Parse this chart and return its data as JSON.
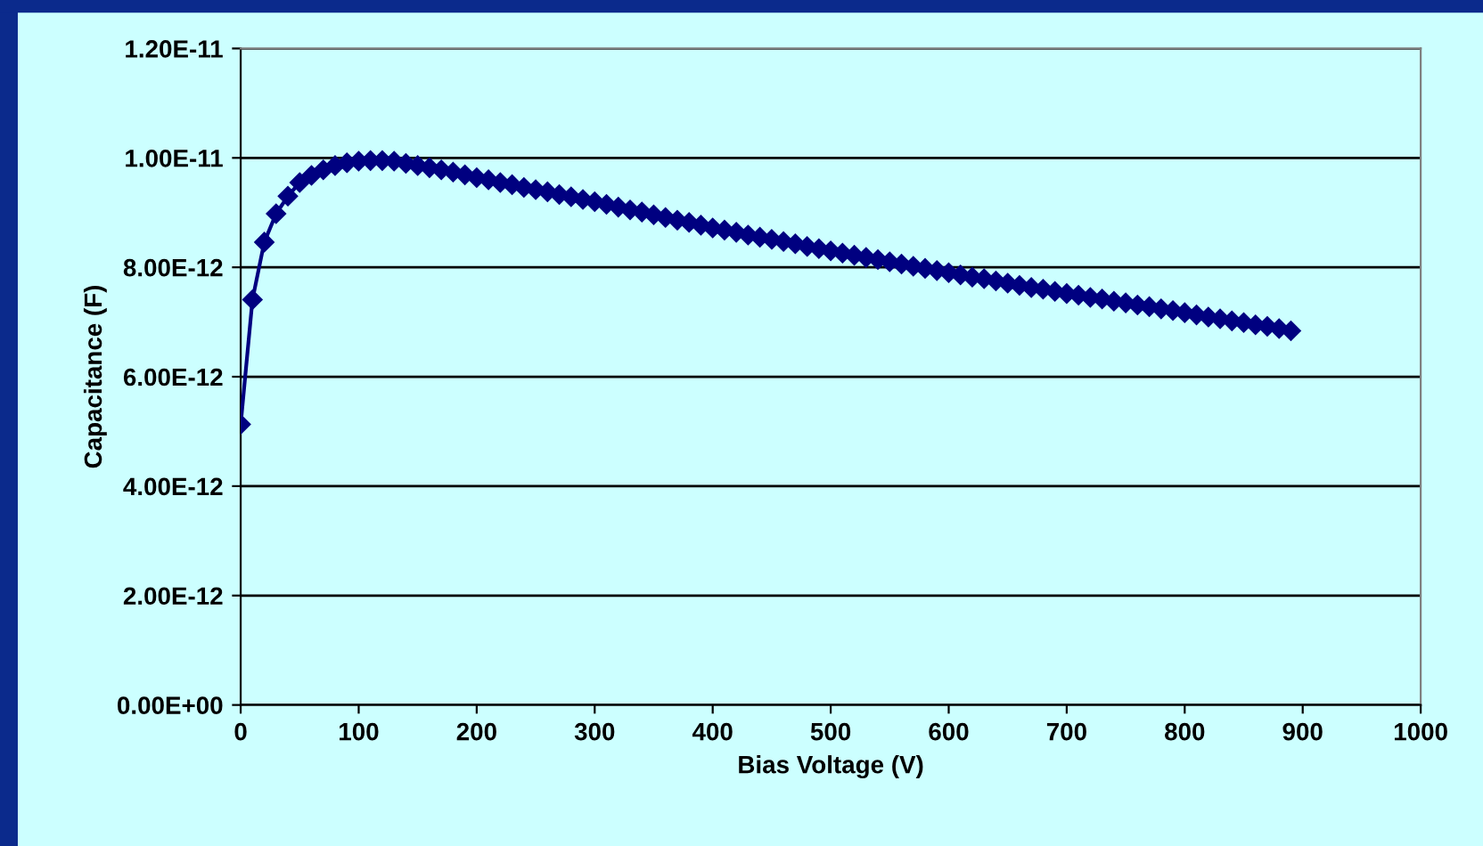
{
  "chart_data": {
    "type": "line",
    "xlabel": "Bias Voltage (V)",
    "ylabel": "Capacitance (F)",
    "x": [
      0,
      10,
      20,
      30,
      40,
      50,
      60,
      70,
      80,
      90,
      100,
      110,
      120,
      130,
      140,
      150,
      160,
      170,
      180,
      190,
      200,
      210,
      220,
      230,
      240,
      250,
      260,
      270,
      280,
      290,
      300,
      310,
      320,
      330,
      340,
      350,
      360,
      370,
      380,
      390,
      400,
      410,
      420,
      430,
      440,
      450,
      460,
      470,
      480,
      490,
      500,
      510,
      520,
      530,
      540,
      550,
      560,
      570,
      580,
      590,
      600,
      610,
      620,
      630,
      640,
      650,
      660,
      670,
      680,
      690,
      700,
      710,
      720,
      730,
      740,
      750,
      760,
      770,
      780,
      790,
      800,
      810,
      820,
      830,
      840,
      850,
      860,
      870,
      880,
      890
    ],
    "series": [
      {
        "color": "#000080",
        "values": [
          5.13e-12,
          7.41e-12,
          8.46e-12,
          8.98e-12,
          9.3e-12,
          9.55e-12,
          9.68e-12,
          9.78e-12,
          9.86e-12,
          9.91e-12,
          9.94e-12,
          9.95e-12,
          9.95e-12,
          9.94e-12,
          9.9e-12,
          9.86e-12,
          9.82e-12,
          9.78e-12,
          9.74e-12,
          9.69e-12,
          9.64e-12,
          9.6e-12,
          9.55e-12,
          9.51e-12,
          9.46e-12,
          9.42e-12,
          9.38e-12,
          9.33e-12,
          9.29e-12,
          9.24e-12,
          9.2e-12,
          9.15e-12,
          9.1e-12,
          9.05e-12,
          9.01e-12,
          8.96e-12,
          8.91e-12,
          8.86e-12,
          8.82e-12,
          8.77e-12,
          8.72e-12,
          8.68e-12,
          8.64e-12,
          8.59e-12,
          8.55e-12,
          8.51e-12,
          8.47e-12,
          8.43e-12,
          8.38e-12,
          8.34e-12,
          8.3e-12,
          8.26e-12,
          8.22e-12,
          8.18e-12,
          8.14e-12,
          8.1e-12,
          8.06e-12,
          8.02e-12,
          7.98e-12,
          7.94e-12,
          7.9e-12,
          7.86e-12,
          7.82e-12,
          7.79e-12,
          7.75e-12,
          7.71e-12,
          7.67e-12,
          7.63e-12,
          7.6e-12,
          7.56e-12,
          7.52e-12,
          7.49e-12,
          7.45e-12,
          7.42e-12,
          7.38e-12,
          7.35e-12,
          7.31e-12,
          7.28e-12,
          7.24e-12,
          7.21e-12,
          7.17e-12,
          7.13e-12,
          7.09e-12,
          7.06e-12,
          7.02e-12,
          6.99e-12,
          6.95e-12,
          6.92e-12,
          6.88e-12,
          6.84e-12
        ]
      }
    ],
    "xlim": [
      0,
      1000
    ],
    "xticks": [
      0,
      100,
      200,
      300,
      400,
      500,
      600,
      700,
      800,
      900,
      1000
    ],
    "ylim": [
      0,
      1.2e-11
    ],
    "yticks": [
      {
        "value": 0,
        "label": "0.00E+00"
      },
      {
        "value": 2e-12,
        "label": "2.00E-12"
      },
      {
        "value": 4e-12,
        "label": "4.00E-12"
      },
      {
        "value": 6e-12,
        "label": "6.00E-12"
      },
      {
        "value": 8e-12,
        "label": "8.00E-12"
      },
      {
        "value": 1e-11,
        "label": "1.00E-11"
      },
      {
        "value": 1.2e-11,
        "label": "1.20E-11"
      }
    ],
    "grid": "y",
    "marker": "diamond",
    "line_style": "solid",
    "legend": false
  }
}
